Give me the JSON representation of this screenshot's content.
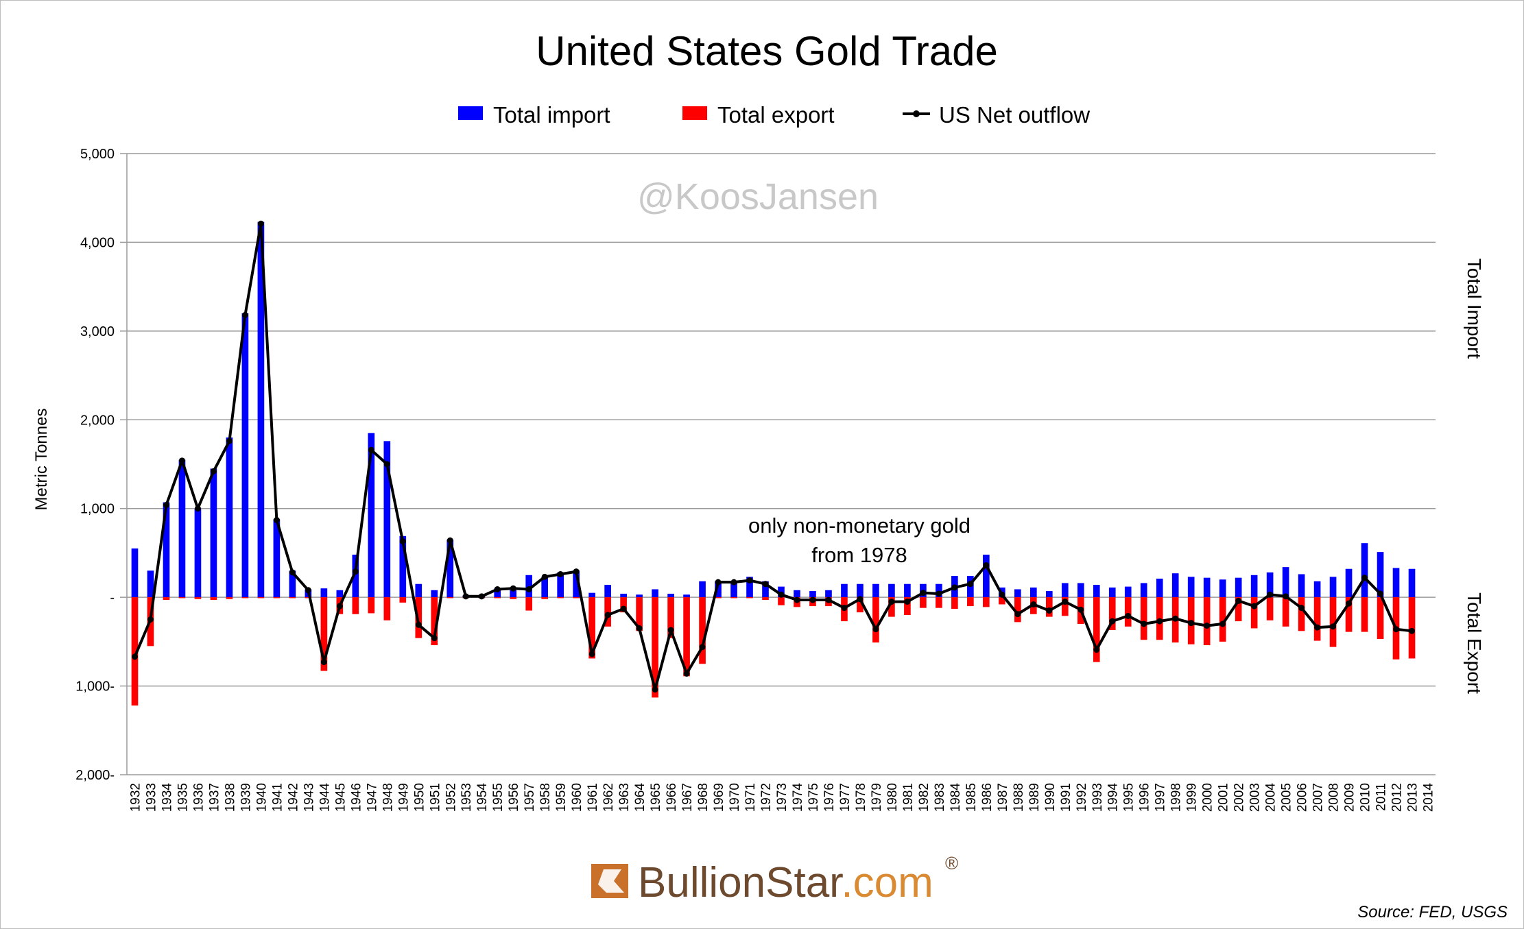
{
  "chart_data": {
    "type": "bar",
    "title": "United States Gold Trade",
    "watermark": "@KoosJansen",
    "ylabel": "Metric Tonnes",
    "right_label_top": "Total Import",
    "right_label_bottom": "Total Export",
    "annotation": [
      "only non-monetary gold",
      "from 1978"
    ],
    "source": "Source: FED, USGS",
    "brand": {
      "name": "BullionStar",
      "suffix": ".com",
      "registered": "®",
      "name_color": "#6d4a2e",
      "suffix_color": "#d98a32",
      "logo_color": "#c9712a"
    },
    "ylim": [
      -2000,
      5000
    ],
    "y_ticks": [
      {
        "value": 5000,
        "label": "5,000"
      },
      {
        "value": 4000,
        "label": "4,000"
      },
      {
        "value": 3000,
        "label": "3,000"
      },
      {
        "value": 2000,
        "label": "2,000"
      },
      {
        "value": 1000,
        "label": "1,000"
      },
      {
        "value": 0,
        "label": "-"
      },
      {
        "value": -1000,
        "label": "1,000-"
      },
      {
        "value": -2000,
        "label": "2,000-"
      }
    ],
    "grid": true,
    "legend": {
      "position": "top-center",
      "items": [
        {
          "name": "Total import",
          "color": "#0000ff",
          "kind": "bar"
        },
        {
          "name": "Total export",
          "color": "#ff0000",
          "kind": "bar"
        },
        {
          "name": "US Net outflow",
          "color": "#000000",
          "kind": "line"
        }
      ]
    },
    "categories": [
      "1932",
      "1933",
      "1934",
      "1935",
      "1936",
      "1937",
      "1938",
      "1939",
      "1940",
      "1941",
      "1942",
      "1943",
      "1944",
      "1945",
      "1946",
      "1947",
      "1948",
      "1949",
      "1950",
      "1951",
      "1952",
      "1953",
      "1954",
      "1955",
      "1956",
      "1957",
      "1958",
      "1959",
      "1960",
      "1961",
      "1962",
      "1963",
      "1964",
      "1965",
      "1966",
      "1967",
      "1968",
      "1969",
      "1970",
      "1971",
      "1972",
      "1973",
      "1974",
      "1975",
      "1976",
      "1977",
      "1978",
      "1979",
      "1980",
      "1981",
      "1982",
      "1983",
      "1984",
      "1985",
      "1986",
      "1987",
      "1988",
      "1989",
      "1990",
      "1991",
      "1992",
      "1993",
      "1994",
      "1995",
      "1996",
      "1997",
      "1998",
      "1999",
      "2000",
      "2001",
      "2002",
      "2003",
      "2004",
      "2005",
      "2006",
      "2007",
      "2008",
      "2009",
      "2010",
      "2011",
      "2012",
      "2013",
      "2014"
    ],
    "series": [
      {
        "name": "Total import",
        "values": [
          550,
          300,
          1070,
          1550,
          1000,
          1450,
          1800,
          3200,
          4230,
          880,
          300,
          90,
          100,
          80,
          480,
          1850,
          1760,
          690,
          150,
          80,
          650,
          20,
          10,
          100,
          80,
          250,
          230,
          280,
          300,
          50,
          140,
          40,
          30,
          90,
          40,
          30,
          180,
          180,
          180,
          230,
          180,
          120,
          80,
          70,
          80,
          150,
          150,
          150,
          150,
          150,
          150,
          150,
          240,
          240,
          480,
          110,
          90,
          110,
          70,
          160,
          160,
          140,
          110,
          120,
          160,
          210,
          270,
          230,
          220,
          200,
          220,
          250,
          280,
          340,
          260,
          180,
          230,
          320,
          610,
          510,
          330,
          320,
          null
        ]
      },
      {
        "name": "Total export",
        "values": [
          -1220,
          -550,
          -30,
          -10,
          -20,
          -30,
          -20,
          -10,
          -10,
          -10,
          -10,
          -10,
          -830,
          -190,
          -190,
          -180,
          -260,
          -60,
          -460,
          -540,
          -10,
          -10,
          -10,
          -10,
          -20,
          -150,
          -20,
          -10,
          -10,
          -690,
          -330,
          -170,
          -380,
          -1130,
          -460,
          -890,
          -750,
          -10,
          -10,
          -10,
          -30,
          -90,
          -110,
          -100,
          -100,
          -270,
          -170,
          -510,
          -220,
          -200,
          -120,
          -120,
          -130,
          -100,
          -110,
          -80,
          -280,
          -190,
          -220,
          -210,
          -300,
          -730,
          -370,
          -330,
          -480,
          -480,
          -510,
          -530,
          -540,
          -500,
          -270,
          -350,
          -260,
          -330,
          -380,
          -490,
          -560,
          -390,
          -390,
          -470,
          -700,
          -690,
          null
        ]
      },
      {
        "name": "US Net outflow",
        "values": [
          -670,
          -250,
          1040,
          1540,
          1000,
          1420,
          1760,
          3180,
          4210,
          870,
          280,
          80,
          -730,
          -100,
          290,
          1660,
          1500,
          630,
          -310,
          -460,
          640,
          10,
          10,
          90,
          100,
          90,
          230,
          260,
          290,
          -640,
          -200,
          -130,
          -350,
          -1040,
          -370,
          -860,
          -560,
          170,
          170,
          190,
          150,
          30,
          -30,
          -30,
          -30,
          -120,
          -20,
          -360,
          -50,
          -50,
          50,
          40,
          110,
          150,
          360,
          30,
          -190,
          -80,
          -150,
          -50,
          -140,
          -590,
          -270,
          -210,
          -300,
          -270,
          -240,
          -290,
          -320,
          -300,
          -40,
          -100,
          30,
          10,
          -120,
          -340,
          -330,
          -70,
          220,
          40,
          -360,
          -380,
          null
        ]
      }
    ]
  }
}
